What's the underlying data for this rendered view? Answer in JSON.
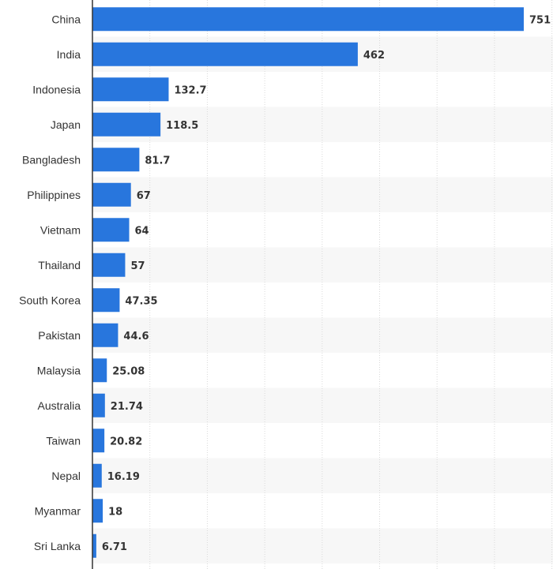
{
  "chart_data": {
    "type": "bar",
    "orientation": "horizontal",
    "categories": [
      "China",
      "India",
      "Indonesia",
      "Japan",
      "Bangladesh",
      "Philippines",
      "Vietnam",
      "Thailand",
      "South Korea",
      "Pakistan",
      "Malaysia",
      "Australia",
      "Taiwan",
      "Nepal",
      "Myanmar",
      "Sri Lanka"
    ],
    "values": [
      751,
      462,
      132.7,
      118.5,
      81.7,
      67,
      64,
      57,
      47.35,
      44.6,
      25.08,
      21.74,
      20.82,
      16.19,
      18,
      6.71
    ],
    "value_labels": [
      "751",
      "462",
      "132.7",
      "118.5",
      "81.7",
      "67",
      "64",
      "57",
      "47.35",
      "44.6",
      "25.08",
      "21.74",
      "20.82",
      "16.19",
      "18",
      "6.71"
    ],
    "xlim": [
      0,
      800
    ],
    "grid": true,
    "colors": {
      "bar": "#2876dd",
      "stripe": "#f7f7f7",
      "grid": "#d9d9d9",
      "axis": "#333333",
      "text": "#333333"
    }
  }
}
